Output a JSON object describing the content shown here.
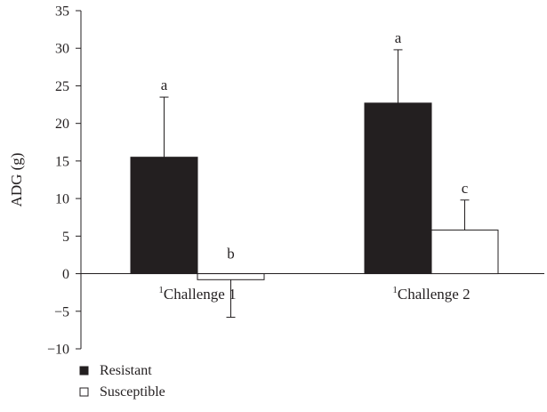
{
  "chart_data": {
    "type": "bar",
    "title": "",
    "xlabel": "",
    "ylabel": "ADG (g)",
    "ylim": [
      -10,
      35
    ],
    "yticks": [
      35,
      30,
      25,
      20,
      15,
      10,
      5,
      0,
      -5,
      -10
    ],
    "ytick_labels": [
      "35",
      "30",
      "25",
      "20",
      "15",
      "10",
      "5",
      "0",
      "−5",
      "−10"
    ],
    "grid": false,
    "legend_position": "bottom-left",
    "categories": [
      {
        "superscript": "1",
        "label": "Challenge 1"
      },
      {
        "superscript": "1",
        "label": "Challenge 2"
      }
    ],
    "series": [
      {
        "name": "Resistant",
        "color": "#231f20",
        "values": [
          15.5,
          22.7
        ],
        "error_upper": [
          23.5,
          29.8
        ],
        "letters": [
          "a",
          "a"
        ]
      },
      {
        "name": "Susceptible",
        "color": "#ffffff",
        "values": [
          -0.8,
          5.8
        ],
        "error_upper": [
          -5.8,
          9.8
        ],
        "letters": [
          "b",
          "c"
        ]
      }
    ]
  }
}
